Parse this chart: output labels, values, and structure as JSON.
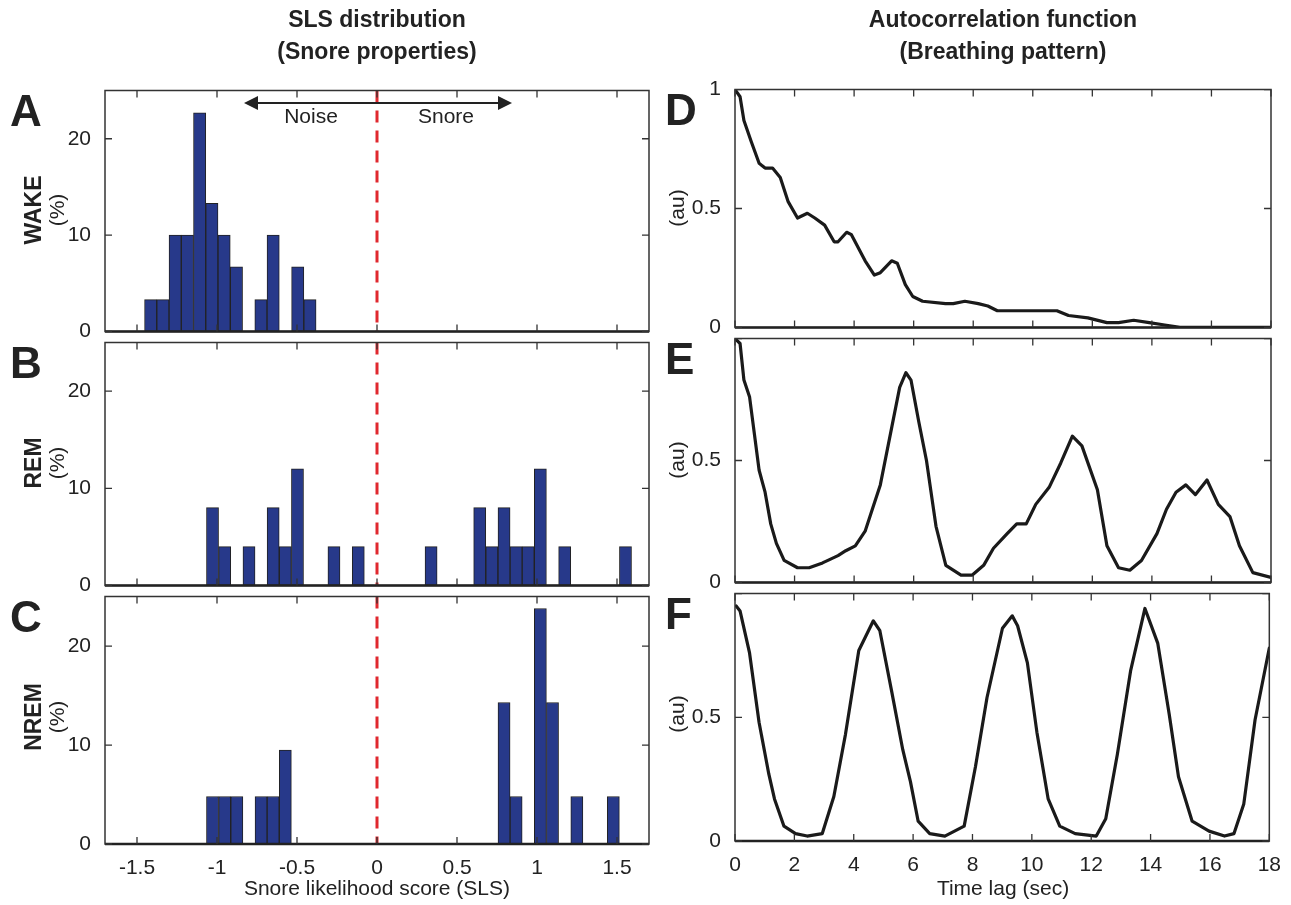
{
  "chart_data": [
    {
      "type": "histogram",
      "title": "SLS distribution",
      "subtitle": "(Snore properties)",
      "ylabel": "WAKE (%)",
      "color": "#27398a",
      "bins": [
        -1.453,
        -1.376,
        -1.3,
        -1.223,
        -1.147,
        -1.07,
        -0.994,
        -0.917,
        -0.84,
        -0.764,
        -0.687,
        -0.611,
        -0.534,
        -0.457,
        -0.381
      ],
      "values": [
        3.3,
        3.3,
        10,
        10,
        22.7,
        13.3,
        10,
        6.7,
        0,
        3.3,
        10,
        0,
        6.7,
        3.3
      ],
      "xlim": [
        -1.7,
        1.7
      ],
      "xticks": [
        -1.5,
        -1,
        -0.5,
        0,
        0.5,
        1,
        1.5
      ],
      "ylim": [
        0,
        25
      ],
      "yticks": [
        0,
        10,
        20
      ],
      "tick_labels": "y",
      "ref_lines": [
        {
          "axis": "x",
          "value": 0,
          "color": "#e0282e",
          "line_style": "dashed"
        }
      ],
      "annotations": [
        "A",
        "Noise",
        "Snore"
      ]
    },
    {
      "type": "histogram",
      "ylabel": "REM (%)",
      "color": "#27398a",
      "bins": [
        -1.066,
        -0.99,
        -0.914,
        -0.838,
        -0.762,
        -0.687,
        -0.611,
        -0.535,
        -0.459,
        -0.383,
        -0.307,
        -0.231,
        -0.155,
        -0.079,
        -0.003,
        0.073,
        0.148,
        0.224,
        0.3,
        0.376,
        0.452,
        0.528,
        0.604,
        0.68,
        0.756,
        0.832,
        0.907,
        0.983,
        1.059,
        1.135,
        1.211,
        1.287,
        1.363,
        1.439,
        1.515,
        1.591
      ],
      "values": [
        8,
        4,
        0,
        4,
        0,
        8,
        4,
        12,
        0,
        0,
        4,
        0,
        4,
        0,
        0,
        0,
        0,
        0,
        4,
        0,
        0,
        0,
        8,
        4,
        8,
        4,
        4,
        12,
        0,
        4,
        0,
        0,
        0,
        0,
        4
      ],
      "xlim": [
        -1.7,
        1.7
      ],
      "xticks": [
        -1.5,
        -1,
        -0.5,
        0,
        0.5,
        1,
        1.5
      ],
      "ylim": [
        0,
        25
      ],
      "yticks": [
        0,
        10,
        20
      ],
      "tick_labels": "y",
      "ref_lines": [
        {
          "axis": "x",
          "value": 0,
          "color": "#e0282e",
          "line_style": "dashed"
        }
      ],
      "annotations": [
        "B"
      ]
    },
    {
      "type": "histogram",
      "ylabel": "NREM (%)",
      "xlabel": "Snore likelihood score (SLS)",
      "color": "#27398a",
      "bins": [
        -1.066,
        -0.99,
        -0.914,
        -0.838,
        -0.762,
        -0.687,
        -0.611,
        -0.535,
        -0.459,
        -0.383,
        -0.307,
        -0.231,
        -0.155,
        -0.079,
        -0.003,
        0.073,
        0.148,
        0.224,
        0.3,
        0.376,
        0.452,
        0.528,
        0.604,
        0.68,
        0.756,
        0.832,
        0.907,
        0.983,
        1.059,
        1.135,
        1.211,
        1.287,
        1.363,
        1.439,
        1.515
      ],
      "values": [
        4.8,
        4.8,
        4.8,
        0,
        4.8,
        4.8,
        9.5,
        0,
        0,
        0,
        0,
        0,
        0,
        0,
        0,
        0,
        0,
        0,
        0,
        0,
        0,
        0,
        0,
        0,
        14.3,
        4.8,
        0,
        23.8,
        14.3,
        0,
        4.8,
        0,
        0,
        4.8
      ],
      "xlim": [
        -1.7,
        1.7
      ],
      "xticks": [
        -1.5,
        -1,
        -0.5,
        0,
        0.5,
        1,
        1.5
      ],
      "ylim": [
        0,
        25
      ],
      "yticks": [
        0,
        10,
        20
      ],
      "ref_lines": [
        {
          "axis": "x",
          "value": 0,
          "color": "#e0282e",
          "line_style": "dashed"
        }
      ],
      "annotations": [
        "C"
      ]
    },
    {
      "type": "line",
      "title": "Autocorrelation function",
      "subtitle": "(Breathing pattern)",
      "ylabel": "(au)",
      "color": "#1a1a1a",
      "x": [
        0,
        0.17,
        0.3,
        0.55,
        0.81,
        1.01,
        1.26,
        1.52,
        1.78,
        2.1,
        2.43,
        2.68,
        3.01,
        3.33,
        3.46,
        3.75,
        3.91,
        4.37,
        4.68,
        4.88,
        5.26,
        5.45,
        5.72,
        5.97,
        6.3,
        7.07,
        7.33,
        7.72,
        8.17,
        8.49,
        8.81,
        9.39,
        10.3,
        10.55,
        10.81,
        11.2,
        11.85,
        12.49,
        12.88,
        13.39,
        13.91,
        14.43,
        14.94,
        18
      ],
      "values": [
        1,
        0.97,
        0.87,
        0.78,
        0.69,
        0.67,
        0.67,
        0.63,
        0.53,
        0.46,
        0.48,
        0.46,
        0.43,
        0.36,
        0.36,
        0.4,
        0.39,
        0.28,
        0.22,
        0.23,
        0.28,
        0.27,
        0.18,
        0.13,
        0.11,
        0.1,
        0.1,
        0.11,
        0.1,
        0.09,
        0.07,
        0.07,
        0.07,
        0.07,
        0.07,
        0.05,
        0.04,
        0.02,
        0.02,
        0.03,
        0.02,
        0.01,
        0,
        0
      ],
      "xlim": [
        0,
        18
      ],
      "xticks": [
        0,
        2,
        4,
        6,
        8,
        10,
        12,
        14,
        16,
        18
      ],
      "ylim": [
        0,
        1
      ],
      "yticks": [
        0,
        0.5,
        1
      ],
      "tick_labels": "y",
      "annotations": [
        "D"
      ]
    },
    {
      "type": "line",
      "ylabel": "(au)",
      "color": "#1a1a1a",
      "x": [
        0,
        0.17,
        0.3,
        0.49,
        0.81,
        1.01,
        1.2,
        1.39,
        1.65,
        2.1,
        2.49,
        2.94,
        3.46,
        3.72,
        4.04,
        4.37,
        4.88,
        5.27,
        5.53,
        5.74,
        5.91,
        6.17,
        6.43,
        6.75,
        7.08,
        7.59,
        7.97,
        8.35,
        8.68,
        9.14,
        9.46,
        9.78,
        10.1,
        10.55,
        10.94,
        11.33,
        11.65,
        12.17,
        12.49,
        12.88,
        13.26,
        13.65,
        14.17,
        14.49,
        14.81,
        15.14,
        15.46,
        15.85,
        16.23,
        16.62,
        16.94,
        17.39,
        18
      ],
      "values": [
        1,
        0.98,
        0.83,
        0.76,
        0.46,
        0.37,
        0.24,
        0.16,
        0.09,
        0.06,
        0.06,
        0.08,
        0.11,
        0.13,
        0.15,
        0.21,
        0.4,
        0.64,
        0.8,
        0.86,
        0.83,
        0.66,
        0.5,
        0.23,
        0.07,
        0.03,
        0.03,
        0.07,
        0.14,
        0.2,
        0.24,
        0.24,
        0.32,
        0.39,
        0.49,
        0.6,
        0.56,
        0.38,
        0.15,
        0.06,
        0.05,
        0.09,
        0.2,
        0.3,
        0.37,
        0.4,
        0.36,
        0.42,
        0.32,
        0.27,
        0.15,
        0.04,
        0.02
      ],
      "xlim": [
        0,
        18
      ],
      "xticks": [
        0,
        2,
        4,
        6,
        8,
        10,
        12,
        14,
        16,
        18
      ],
      "ylim": [
        0,
        1
      ],
      "yticks": [
        0,
        0.5,
        {
          "value": 1,
          "label": null
        }
      ],
      "tick_labels": "y",
      "annotations": [
        "E"
      ]
    },
    {
      "type": "line",
      "ylabel": "(au)",
      "xlabel": "Time lag (sec)",
      "color": "#1a1a1a",
      "x": [
        0.04,
        0.17,
        0.49,
        0.81,
        1.14,
        1.33,
        1.65,
        2.04,
        2.43,
        2.94,
        3.33,
        3.72,
        4.17,
        4.66,
        4.88,
        5.27,
        5.65,
        5.91,
        6.17,
        6.56,
        7.07,
        7.72,
        8.1,
        8.49,
        9.01,
        9.34,
        9.52,
        9.85,
        10.17,
        10.55,
        10.94,
        11.46,
        12.17,
        12.49,
        12.88,
        13.33,
        13.81,
        14.24,
        14.63,
        14.94,
        15.4,
        15.97,
        16.49,
        16.81,
        17.14,
        17.52,
        18
      ],
      "values": [
        0.95,
        0.93,
        0.76,
        0.48,
        0.27,
        0.17,
        0.06,
        0.03,
        0.02,
        0.03,
        0.18,
        0.43,
        0.77,
        0.89,
        0.85,
        0.61,
        0.37,
        0.24,
        0.08,
        0.03,
        0.02,
        0.06,
        0.3,
        0.58,
        0.86,
        0.91,
        0.87,
        0.72,
        0.44,
        0.17,
        0.06,
        0.03,
        0.02,
        0.09,
        0.35,
        0.69,
        0.94,
        0.8,
        0.51,
        0.26,
        0.08,
        0.04,
        0.02,
        0.03,
        0.15,
        0.49,
        0.78
      ],
      "xlim": [
        0,
        18
      ],
      "xticks": [
        0,
        2,
        4,
        6,
        8,
        10,
        12,
        14,
        16,
        18
      ],
      "ylim": [
        0,
        1
      ],
      "yticks": [
        0,
        0.5,
        {
          "value": 1,
          "label": null
        }
      ],
      "annotations": [
        "F"
      ]
    }
  ]
}
